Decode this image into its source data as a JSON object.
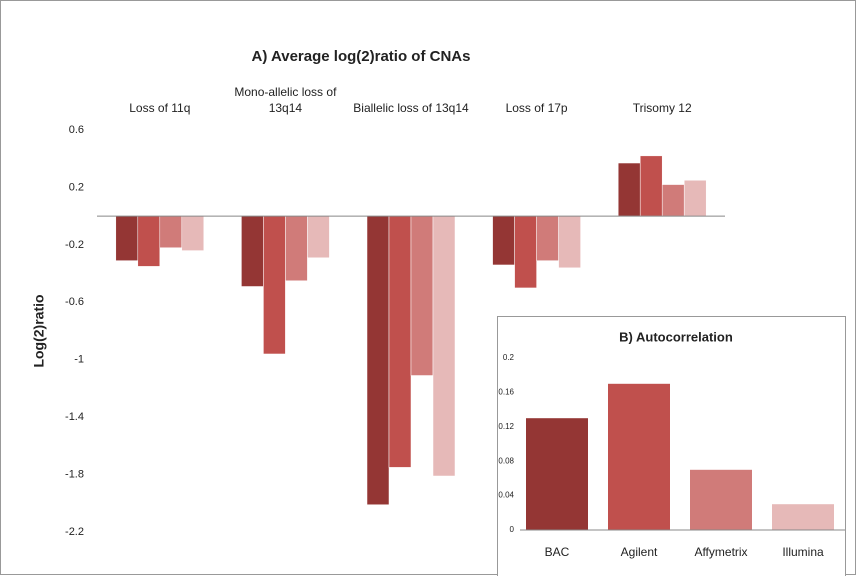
{
  "chart_data": [
    {
      "type": "bar",
      "title": "A) Average log(2)ratio of CNAs",
      "y_label": "Log(2)ratio",
      "categories": [
        "Loss of 11q",
        "Mono-allelic loss of 13q14",
        "Biallelic loss of 13q14",
        "Loss of 17p",
        "Trisomy 12"
      ],
      "series": [
        {
          "color": "#943634",
          "values": [
            -0.31,
            -0.49,
            -2.01,
            -0.34,
            0.37
          ]
        },
        {
          "color": "#c0504d",
          "values": [
            -0.35,
            -0.96,
            -1.75,
            -0.5,
            0.42
          ]
        },
        {
          "color": "#d07b79",
          "values": [
            -0.22,
            -0.45,
            -1.11,
            -0.31,
            0.22
          ]
        },
        {
          "color": "#e6b9b8",
          "values": [
            -0.24,
            -0.29,
            -1.81,
            -0.36,
            0.25
          ]
        }
      ],
      "ylim": [
        -2.2,
        0.6
      ],
      "yticks": [
        0.6,
        0.2,
        -0.2,
        -0.6,
        -1,
        -1.4,
        -1.8,
        -2.2
      ],
      "grid": false
    },
    {
      "type": "bar",
      "title": "B) Autocorrelation",
      "categories": [
        "BAC",
        "Agilent",
        "Affymetrix",
        "Illumina"
      ],
      "values": [
        0.13,
        0.17,
        0.07,
        0.03
      ],
      "colors": [
        "#943634",
        "#c0504d",
        "#d07b79",
        "#e6b9b8"
      ],
      "ylim": [
        0,
        0.2
      ],
      "yticks": [
        0,
        0.04,
        0.08,
        0.12,
        0.16,
        0.2
      ],
      "grid": false
    }
  ]
}
